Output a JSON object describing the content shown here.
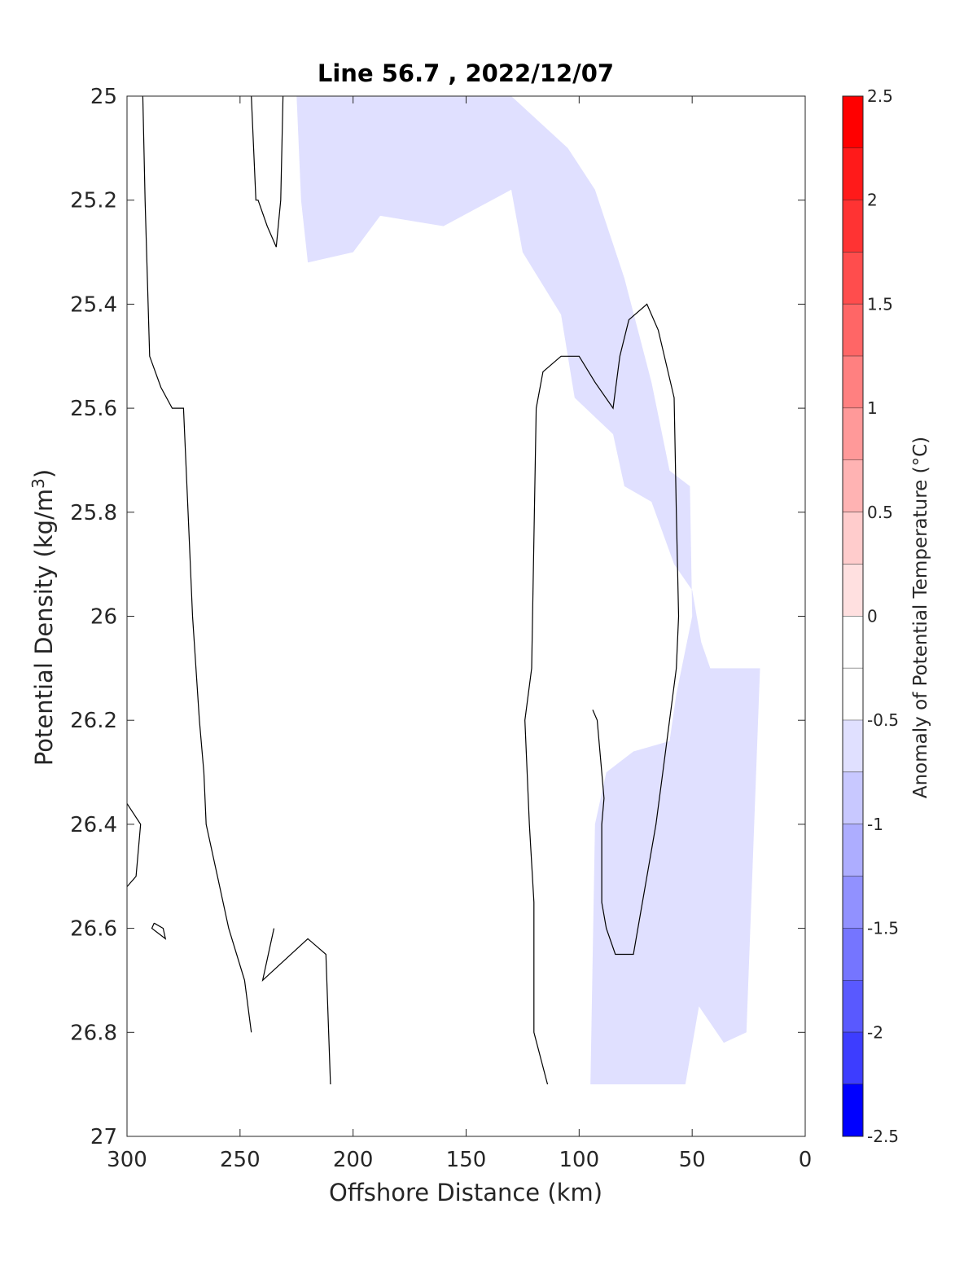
{
  "chart_data": {
    "type": "contour",
    "title": "Line 56.7 , 2022/12/07",
    "xlabel": "Offshore Distance (km)",
    "ylabel_main": "Potential Density (kg/m",
    "ylabel_sup": "3",
    "ylabel_close": ")",
    "xlim": [
      300,
      0
    ],
    "ylim": [
      25,
      27
    ],
    "y_reversed": true,
    "grid": false,
    "x_ticks": [
      300,
      250,
      200,
      150,
      100,
      50,
      0
    ],
    "x_tick_labels": [
      "300",
      "250",
      "200",
      "150",
      "100",
      "50",
      "0"
    ],
    "y_ticks": [
      25,
      25.2,
      25.4,
      25.6,
      25.8,
      26,
      26.2,
      26.4,
      26.6,
      26.8,
      27
    ],
    "y_tick_labels": [
      "25",
      "25.2",
      "25.4",
      "25.6",
      "25.8",
      "26",
      "26.2",
      "26.4",
      "26.6",
      "26.8",
      "27"
    ],
    "colorbar": {
      "label": "Anomaly of Potential Temperature (°C)",
      "range": [
        -2.5,
        2.5
      ],
      "step": 0.25,
      "ticks": [
        2.5,
        2,
        1.5,
        1,
        0.5,
        0,
        -0.5,
        -1,
        -1.5,
        -2,
        -2.5
      ],
      "tick_labels": [
        "2.5",
        "2",
        "1.5",
        "1",
        "0.5",
        "0",
        "-0.5",
        "-1",
        "-1.5",
        "-2",
        "-2.5"
      ],
      "levels": [
        {
          "lo": 2.25,
          "hi": 2.5,
          "color": "#ff0000"
        },
        {
          "lo": 2.0,
          "hi": 2.25,
          "color": "#ff1a1a"
        },
        {
          "lo": 1.75,
          "hi": 2.0,
          "color": "#ff3333"
        },
        {
          "lo": 1.5,
          "hi": 1.75,
          "color": "#ff4d4d"
        },
        {
          "lo": 1.25,
          "hi": 1.5,
          "color": "#ff6666"
        },
        {
          "lo": 1.0,
          "hi": 1.25,
          "color": "#ff8080"
        },
        {
          "lo": 0.75,
          "hi": 1.0,
          "color": "#ff9999"
        },
        {
          "lo": 0.5,
          "hi": 0.75,
          "color": "#ffb3b3"
        },
        {
          "lo": 0.25,
          "hi": 0.5,
          "color": "#ffcccc"
        },
        {
          "lo": 0.0,
          "hi": 0.25,
          "color": "#ffe0e0"
        },
        {
          "lo": -0.25,
          "hi": 0.0,
          "color": "#ffffff"
        },
        {
          "lo": -0.5,
          "hi": -0.25,
          "color": "#ffffff"
        },
        {
          "lo": -0.75,
          "hi": -0.5,
          "color": "#e0e0ff"
        },
        {
          "lo": -1.0,
          "hi": -0.75,
          "color": "#c8c8ff"
        },
        {
          "lo": -1.25,
          "hi": -1.0,
          "color": "#adadff"
        },
        {
          "lo": -1.5,
          "hi": -1.25,
          "color": "#9191ff"
        },
        {
          "lo": -1.75,
          "hi": -1.5,
          "color": "#7575ff"
        },
        {
          "lo": -2.0,
          "hi": -1.75,
          "color": "#5959ff"
        },
        {
          "lo": -2.25,
          "hi": -2.0,
          "color": "#3d3dff"
        },
        {
          "lo": -2.5,
          "hi": -2.25,
          "color": "#0000ff"
        }
      ]
    },
    "filled_regions": [
      {
        "value": -0.5,
        "color": "#e0e0ff",
        "points": [
          [
            300,
            26.9
          ],
          [
            95,
            26.9
          ],
          [
            94,
            26.65
          ],
          [
            93,
            26.4
          ],
          [
            88,
            26.3
          ],
          [
            76,
            26.26
          ],
          [
            60,
            26.24
          ],
          [
            57,
            26.15
          ],
          [
            50,
            26.0
          ],
          [
            51,
            25.75
          ],
          [
            60,
            25.72
          ],
          [
            68,
            25.55
          ],
          [
            80,
            25.35
          ],
          [
            93,
            25.18
          ],
          [
            105,
            25.1
          ],
          [
            130,
            25.0
          ],
          [
            225,
            25.0
          ],
          [
            223,
            25.2
          ],
          [
            220,
            25.32
          ],
          [
            200,
            25.3
          ],
          [
            188,
            25.23
          ],
          [
            160,
            25.25
          ],
          [
            130,
            25.18
          ],
          [
            125,
            25.3
          ],
          [
            108,
            25.42
          ],
          [
            102,
            25.58
          ],
          [
            85,
            25.65
          ],
          [
            80,
            25.75
          ],
          [
            68,
            25.78
          ],
          [
            58,
            25.9
          ],
          [
            50,
            25.95
          ],
          [
            46,
            26.05
          ],
          [
            42,
            26.1
          ],
          [
            20,
            26.1
          ],
          [
            26,
            26.8
          ],
          [
            36,
            26.82
          ],
          [
            47,
            26.75
          ],
          [
            53,
            26.9
          ],
          [
            300,
            26.9
          ]
        ]
      },
      {
        "value": -0.25,
        "color": "#ffffff",
        "points": [
          [
            300,
            25.0
          ],
          [
            300,
            27.0
          ],
          [
            0,
            27.0
          ],
          [
            0,
            25.0
          ],
          [
            300,
            25.0
          ]
        ]
      }
    ],
    "contour_lines": [
      {
        "level": 0,
        "points": [
          [
            293,
            25.0
          ],
          [
            292,
            25.2
          ],
          [
            290,
            25.5
          ],
          [
            285,
            25.56
          ],
          [
            280,
            25.6
          ],
          [
            275,
            25.6
          ],
          [
            273,
            25.8
          ],
          [
            271,
            26.0
          ],
          [
            268,
            26.2
          ],
          [
            266,
            26.3
          ],
          [
            265,
            26.4
          ],
          [
            260,
            26.5
          ],
          [
            255,
            26.6
          ],
          [
            248,
            26.7
          ],
          [
            245,
            26.8
          ]
        ]
      },
      {
        "level": 0,
        "points": [
          [
            245,
            25.0
          ],
          [
            244,
            25.1
          ],
          [
            243,
            25.2
          ],
          [
            242,
            25.2
          ],
          [
            238,
            25.25
          ],
          [
            234,
            25.29
          ],
          [
            232,
            25.2
          ],
          [
            231,
            25.0
          ]
        ]
      },
      {
        "level": 0,
        "points": [
          [
            210,
            26.9
          ],
          [
            212,
            26.65
          ],
          [
            220,
            26.62
          ],
          [
            240,
            26.7
          ],
          [
            235,
            26.6
          ]
        ]
      },
      {
        "level": 0,
        "points": [
          [
            114,
            26.9
          ],
          [
            120,
            26.8
          ],
          [
            120,
            26.55
          ],
          [
            122,
            26.4
          ],
          [
            124,
            26.2
          ],
          [
            121,
            26.1
          ],
          [
            119,
            25.6
          ],
          [
            116,
            25.53
          ],
          [
            108,
            25.5
          ],
          [
            100,
            25.5
          ],
          [
            93,
            25.55
          ],
          [
            85,
            25.6
          ],
          [
            82,
            25.5
          ],
          [
            78,
            25.43
          ],
          [
            70,
            25.4
          ],
          [
            65,
            25.45
          ],
          [
            58,
            25.58
          ],
          [
            57,
            25.8
          ],
          [
            56,
            26.0
          ],
          [
            57,
            26.1
          ],
          [
            60,
            26.2
          ],
          [
            63,
            26.3
          ],
          [
            66,
            26.4
          ],
          [
            70,
            26.5
          ],
          [
            74,
            26.6
          ],
          [
            76,
            26.65
          ],
          [
            84,
            26.65
          ],
          [
            88,
            26.6
          ],
          [
            90,
            26.55
          ],
          [
            90,
            26.4
          ],
          [
            89,
            26.35
          ],
          [
            92,
            26.2
          ],
          [
            94,
            26.18
          ]
        ]
      },
      {
        "level": 0,
        "points": [
          [
            300,
            26.36
          ],
          [
            294,
            26.4
          ],
          [
            296,
            26.5
          ],
          [
            300,
            26.52
          ]
        ]
      },
      {
        "level": 0,
        "points": [
          [
            288,
            26.59
          ],
          [
            284,
            26.6
          ],
          [
            283,
            26.62
          ],
          [
            289,
            26.6
          ],
          [
            288,
            26.59
          ]
        ]
      }
    ]
  }
}
